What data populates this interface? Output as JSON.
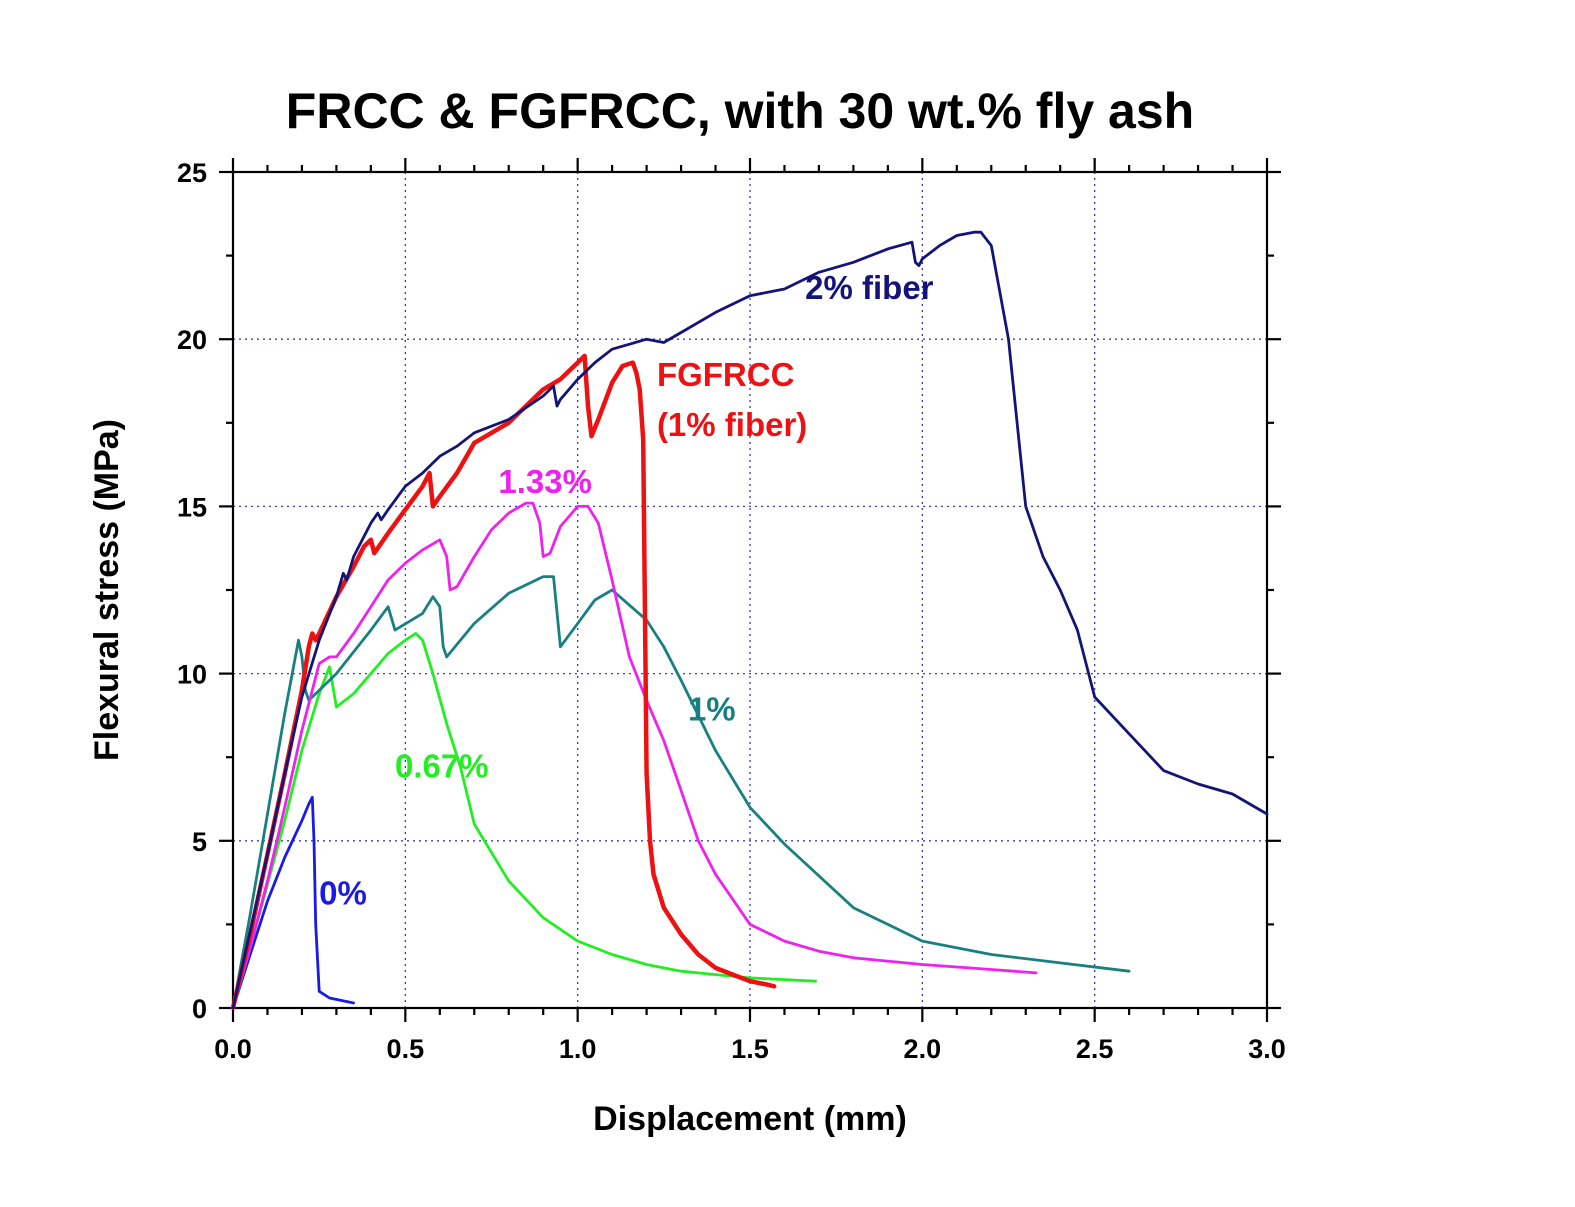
{
  "chart_data": {
    "type": "line",
    "title": "FRCC & FGFRCC, with 30 wt.% fly ash",
    "xlabel": "Displacement (mm)",
    "ylabel": "Flexural stress (MPa)",
    "xlim": [
      0,
      3.0
    ],
    "ylim": [
      0,
      25
    ],
    "x_ticks": [
      "0.0",
      "0.5",
      "1.0",
      "1.5",
      "2.0",
      "2.5",
      "3.0"
    ],
    "y_ticks": [
      "0",
      "5",
      "10",
      "15",
      "20",
      "25"
    ],
    "grid": true,
    "series": [
      {
        "name": "0%",
        "color": "#1a1ae6",
        "x": [
          0.0,
          0.05,
          0.1,
          0.15,
          0.2,
          0.22,
          0.23,
          0.235,
          0.24,
          0.25,
          0.28,
          0.35
        ],
        "y": [
          0.0,
          1.6,
          3.2,
          4.5,
          5.6,
          6.1,
          6.3,
          5.0,
          2.5,
          0.5,
          0.3,
          0.15
        ]
      },
      {
        "name": "0.67%",
        "color": "#22ee22",
        "x": [
          0.0,
          0.05,
          0.1,
          0.15,
          0.2,
          0.25,
          0.28,
          0.3,
          0.35,
          0.4,
          0.45,
          0.5,
          0.53,
          0.55,
          0.58,
          0.62,
          0.66,
          0.7,
          0.8,
          0.9,
          1.0,
          1.1,
          1.2,
          1.3,
          1.4,
          1.5,
          1.6,
          1.69
        ],
        "y": [
          0.0,
          1.8,
          3.7,
          5.6,
          7.7,
          9.4,
          10.2,
          9.0,
          9.4,
          10.0,
          10.6,
          11.0,
          11.2,
          11.0,
          10.0,
          8.5,
          7.2,
          5.5,
          3.8,
          2.7,
          2.0,
          1.6,
          1.3,
          1.1,
          1.0,
          0.9,
          0.85,
          0.8
        ]
      },
      {
        "name": "1%",
        "color": "#188080",
        "x": [
          0.0,
          0.05,
          0.1,
          0.15,
          0.19,
          0.2,
          0.21,
          0.22,
          0.3,
          0.4,
          0.45,
          0.47,
          0.55,
          0.58,
          0.6,
          0.61,
          0.62,
          0.7,
          0.8,
          0.9,
          0.93,
          0.95,
          1.0,
          1.05,
          1.1,
          1.2,
          1.25,
          1.3,
          1.4,
          1.5,
          1.6,
          1.8,
          2.0,
          2.2,
          2.4,
          2.6
        ],
        "y": [
          0.0,
          2.8,
          5.8,
          8.8,
          11.0,
          10.5,
          9.5,
          9.2,
          10.0,
          11.3,
          12.0,
          11.3,
          11.8,
          12.3,
          12.0,
          10.8,
          10.5,
          11.5,
          12.4,
          12.9,
          12.9,
          10.8,
          11.5,
          12.2,
          12.5,
          11.6,
          10.8,
          9.8,
          7.7,
          6.0,
          4.9,
          3.0,
          2.0,
          1.6,
          1.35,
          1.1
        ]
      },
      {
        "name": "1.33%",
        "color": "#ee22ee",
        "x": [
          0.0,
          0.05,
          0.1,
          0.15,
          0.2,
          0.25,
          0.28,
          0.3,
          0.35,
          0.4,
          0.45,
          0.5,
          0.55,
          0.6,
          0.62,
          0.63,
          0.65,
          0.7,
          0.75,
          0.8,
          0.85,
          0.87,
          0.89,
          0.9,
          0.92,
          0.95,
          1.0,
          1.03,
          1.06,
          1.1,
          1.15,
          1.2,
          1.25,
          1.3,
          1.35,
          1.4,
          1.5,
          1.6,
          1.7,
          1.8,
          2.0,
          2.2,
          2.33
        ],
        "y": [
          0.0,
          1.8,
          3.8,
          6.0,
          8.3,
          10.3,
          10.5,
          10.5,
          11.2,
          12.0,
          12.8,
          13.3,
          13.7,
          14.0,
          13.5,
          12.5,
          12.6,
          13.5,
          14.3,
          14.8,
          15.1,
          15.1,
          14.5,
          13.5,
          13.6,
          14.4,
          15.0,
          15.0,
          14.5,
          12.8,
          10.5,
          9.2,
          8.0,
          6.5,
          5.0,
          4.0,
          2.5,
          2.0,
          1.7,
          1.5,
          1.3,
          1.15,
          1.05
        ]
      },
      {
        "name": "FGFRCC (1% fiber)",
        "color": "#ee1111",
        "x": [
          0.0,
          0.05,
          0.1,
          0.15,
          0.2,
          0.22,
          0.23,
          0.24,
          0.25,
          0.3,
          0.35,
          0.38,
          0.4,
          0.41,
          0.45,
          0.5,
          0.55,
          0.57,
          0.575,
          0.58,
          0.6,
          0.65,
          0.7,
          0.8,
          0.9,
          0.95,
          1.0,
          1.02,
          1.03,
          1.04,
          1.06,
          1.1,
          1.13,
          1.16,
          1.17,
          1.18,
          1.19,
          1.195,
          1.2,
          1.21,
          1.22,
          1.25,
          1.3,
          1.35,
          1.4,
          1.45,
          1.5,
          1.55,
          1.57
        ],
        "y": [
          0.0,
          2.2,
          4.6,
          7.0,
          9.5,
          10.8,
          11.2,
          11.0,
          11.2,
          12.3,
          13.2,
          13.8,
          14.0,
          13.6,
          14.2,
          14.9,
          15.6,
          16.0,
          15.5,
          15.0,
          15.3,
          16.0,
          16.9,
          17.5,
          18.5,
          18.8,
          19.3,
          19.5,
          18.0,
          17.1,
          17.6,
          18.7,
          19.2,
          19.3,
          19.0,
          18.5,
          17.0,
          12.0,
          7.0,
          5.0,
          4.0,
          3.0,
          2.2,
          1.6,
          1.2,
          1.0,
          0.8,
          0.7,
          0.65
        ]
      },
      {
        "name": "2% fiber",
        "color": "#141478",
        "x": [
          0.0,
          0.05,
          0.1,
          0.15,
          0.2,
          0.25,
          0.3,
          0.32,
          0.33,
          0.35,
          0.4,
          0.42,
          0.43,
          0.45,
          0.5,
          0.55,
          0.6,
          0.65,
          0.7,
          0.8,
          0.9,
          0.93,
          0.94,
          0.95,
          1.0,
          1.05,
          1.1,
          1.2,
          1.25,
          1.3,
          1.4,
          1.5,
          1.6,
          1.7,
          1.8,
          1.9,
          1.97,
          1.98,
          1.99,
          2.0,
          2.05,
          2.1,
          2.15,
          2.17,
          2.2,
          2.25,
          2.3,
          2.35,
          2.4,
          2.45,
          2.5,
          2.6,
          2.7,
          2.8,
          2.9,
          3.0
        ],
        "y": [
          0.0,
          2.3,
          4.6,
          7.0,
          9.3,
          11.0,
          12.3,
          13.0,
          12.8,
          13.5,
          14.5,
          14.8,
          14.6,
          14.9,
          15.6,
          16.0,
          16.5,
          16.8,
          17.2,
          17.6,
          18.3,
          18.6,
          18.0,
          18.2,
          18.8,
          19.3,
          19.7,
          20.0,
          19.9,
          20.2,
          20.8,
          21.3,
          21.5,
          22.0,
          22.3,
          22.7,
          22.9,
          22.3,
          22.2,
          22.4,
          22.8,
          23.1,
          23.2,
          23.2,
          22.8,
          20.0,
          15.0,
          13.5,
          12.5,
          11.3,
          9.3,
          8.2,
          7.1,
          6.7,
          6.4,
          5.8
        ]
      }
    ],
    "annotations": [
      {
        "text": "2% fiber",
        "color": "#141478",
        "x": 1.66,
        "y": 21.2
      },
      {
        "text": "FGFRCC",
        "color": "#ee1111",
        "x": 1.23,
        "y": 18.6
      },
      {
        "text": "(1% fiber)",
        "color": "#ee1111",
        "x": 1.23,
        "y": 17.1
      },
      {
        "text": "1.33%",
        "color": "#ee22ee",
        "x": 0.77,
        "y": 15.4
      },
      {
        "text": "1%",
        "color": "#188080",
        "x": 1.32,
        "y": 8.6
      },
      {
        "text": "0.67%",
        "color": "#22ee22",
        "x": 0.47,
        "y": 6.9
      },
      {
        "text": "0%",
        "color": "#1a1ae6",
        "x": 0.25,
        "y": 3.1
      }
    ]
  }
}
